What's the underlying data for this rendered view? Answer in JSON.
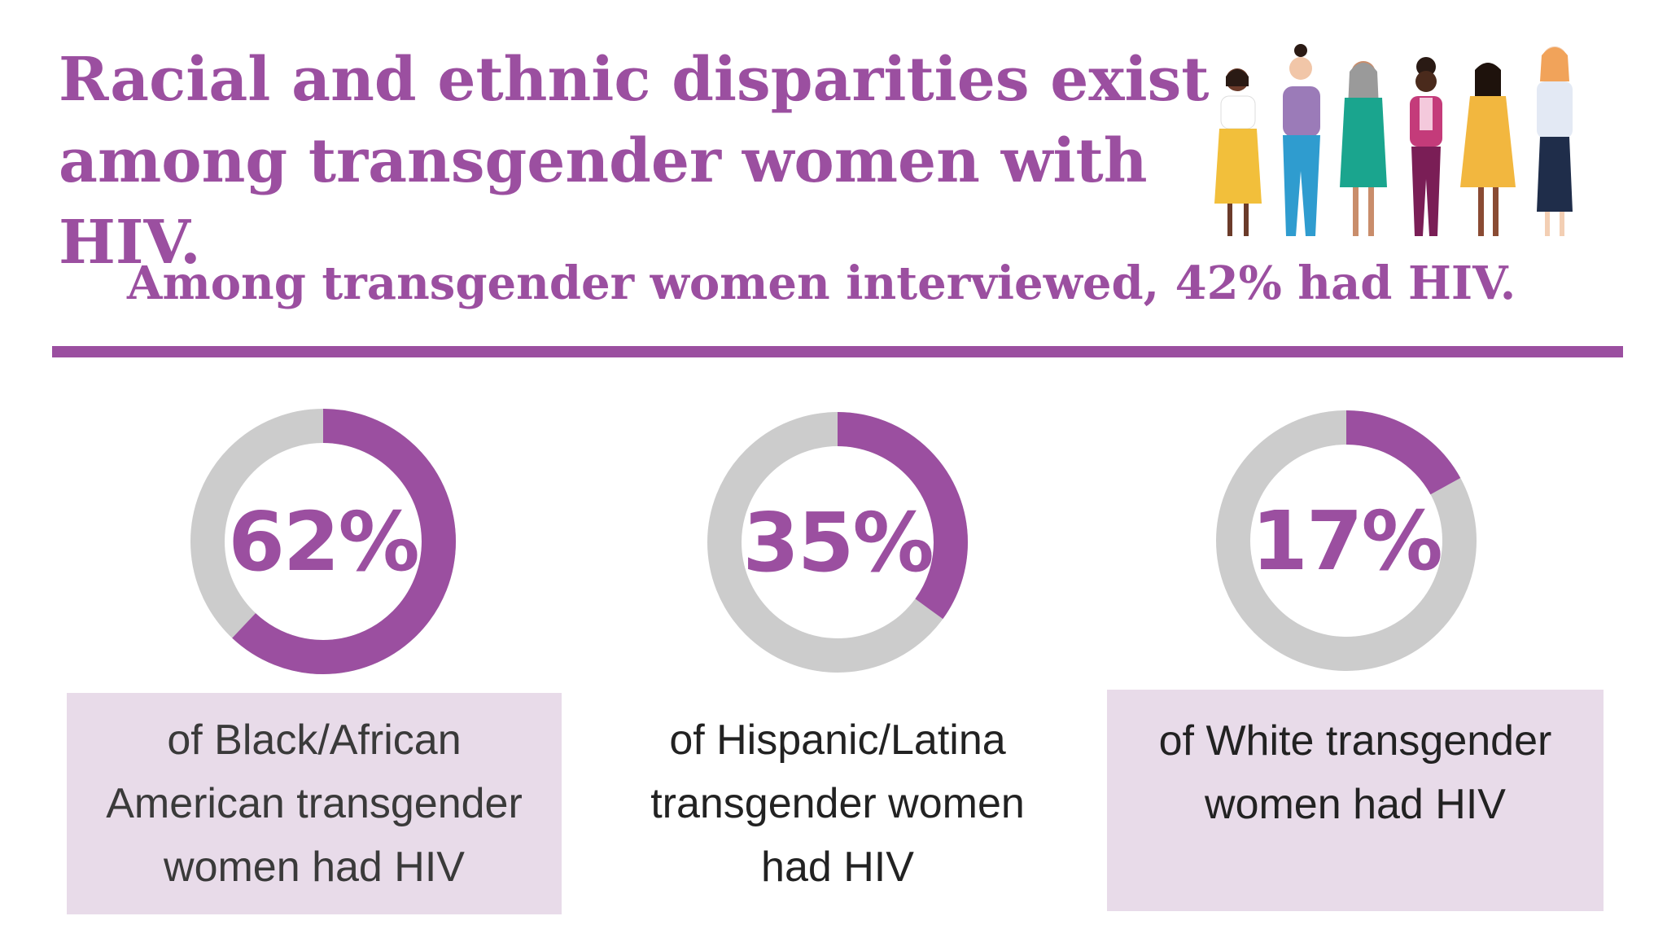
{
  "title": "Racial and ethnic disparities exist among transgender women with HIV.",
  "subtitle": "Among transgender women interviewed, 42% had HIV.",
  "colors": {
    "accent": "#9b4fa0",
    "track": "#cccccc",
    "caption_box": "#e8dbe9"
  },
  "chart_data": {
    "type": "pie",
    "variant": "donut",
    "series": [
      {
        "name": "Black/African American",
        "value": 62,
        "label": "62%",
        "caption": "of Black/African American transgender women had HIV"
      },
      {
        "name": "Hispanic/Latina",
        "value": 35,
        "label": "35%",
        "caption": "of Hispanic/Latina transgender women had HIV"
      },
      {
        "name": "White",
        "value": 17,
        "label": "17%",
        "caption": "of White transgender women had HIV"
      }
    ],
    "max": 100
  }
}
